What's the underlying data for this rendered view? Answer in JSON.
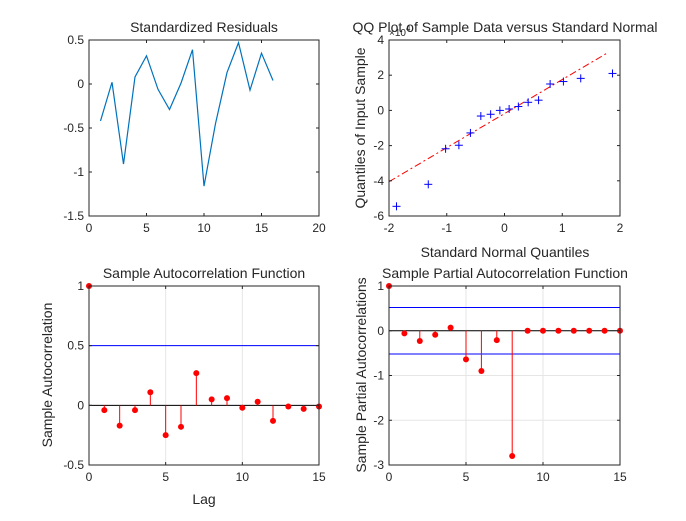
{
  "chart_data": [
    {
      "id": "residuals",
      "type": "line",
      "title": "Standardized Residuals",
      "xlabel": "",
      "ylabel": "",
      "xlim": [
        0,
        20
      ],
      "ylim": [
        -1.5,
        0.5
      ],
      "xticks": [
        0,
        5,
        10,
        15,
        20
      ],
      "yticks": [
        -1.5,
        -1,
        -0.5,
        0,
        0.5
      ],
      "xticklabels": [
        "0",
        "5",
        "10",
        "15",
        "20"
      ],
      "yticklabels": [
        "-1.5",
        "-1",
        "-0.5",
        "0",
        "0.5"
      ],
      "grid": false,
      "series": [
        {
          "color": "#0072bd",
          "x": [
            1,
            2,
            3,
            4,
            5,
            6,
            7,
            8,
            9,
            10,
            11,
            12,
            13,
            14,
            15,
            16
          ],
          "y": [
            -0.42,
            0.02,
            -0.91,
            0.08,
            0.32,
            -0.06,
            -0.29,
            0.01,
            0.39,
            -1.16,
            -0.45,
            0.13,
            0.47,
            -0.07,
            0.35,
            0.04
          ]
        }
      ]
    },
    {
      "id": "qqplot",
      "type": "scatter",
      "title": "QQ Plot of Sample Data versus Standard Normal",
      "xlabel": "Standard Normal Quantiles",
      "ylabel": "Quantiles of Input Sample",
      "exponent_label": "×10",
      "exponent_power": "4",
      "xlim": [
        -2,
        2
      ],
      "ylim": [
        -6,
        4
      ],
      "xticks": [
        -2,
        -1,
        0,
        1,
        2
      ],
      "yticks": [
        -6,
        -4,
        -2,
        0,
        2,
        4
      ],
      "xticklabels": [
        "-2",
        "-1",
        "0",
        "1",
        "2"
      ],
      "yticklabels": [
        "-6",
        "-4",
        "-2",
        "0",
        "2",
        "4"
      ],
      "grid": false,
      "marker": "+",
      "marker_color": "#0000ff",
      "points": {
        "x": [
          -1.87,
          -1.32,
          -1.02,
          -0.79,
          -0.59,
          -0.41,
          -0.24,
          -0.08,
          0.08,
          0.24,
          0.41,
          0.59,
          0.79,
          1.02,
          1.32,
          1.87
        ],
        "y": [
          -5.45,
          -4.2,
          -2.18,
          -1.98,
          -1.28,
          -0.32,
          -0.22,
          0.0,
          0.08,
          0.22,
          0.46,
          0.58,
          1.5,
          1.64,
          1.82,
          2.1
        ]
      },
      "reference_line": {
        "color": "#ff0000",
        "style": "dash-dot",
        "x": [
          -2,
          1.8
        ],
        "y": [
          -4.05,
          3.3
        ]
      }
    },
    {
      "id": "acf",
      "type": "stem",
      "title": "Sample Autocorrelation Function",
      "xlabel": "Lag",
      "ylabel": "Sample Autocorrelation",
      "xlim": [
        0,
        15
      ],
      "ylim": [
        -0.5,
        1
      ],
      "xticks": [
        0,
        5,
        10,
        15
      ],
      "yticks": [
        -0.5,
        0,
        0.5,
        1
      ],
      "xticklabels": [
        "0",
        "5",
        "10",
        "15"
      ],
      "yticklabels": [
        "-0.5",
        "0",
        "0.5",
        "1"
      ],
      "grid": true,
      "stem_color": "#ff0000",
      "lag": [
        0,
        1,
        2,
        3,
        4,
        5,
        6,
        7,
        8,
        9,
        10,
        11,
        12,
        13,
        14,
        15
      ],
      "values": [
        1.0,
        -0.04,
        -0.17,
        -0.04,
        0.11,
        -0.25,
        -0.18,
        0.27,
        0.05,
        0.06,
        -0.02,
        0.03,
        -0.13,
        -0.01,
        -0.03,
        -0.01
      ],
      "bounds": {
        "color": "#0000ff",
        "upper": 0.5,
        "lower": -0.5
      }
    },
    {
      "id": "pacf",
      "type": "stem",
      "title": "Sample Partial Autocorrelation Function",
      "xlabel": "",
      "ylabel": "Sample Partial Autocorrelations",
      "xlim": [
        0,
        15
      ],
      "ylim": [
        -3,
        1
      ],
      "xticks": [
        0,
        5,
        10,
        15
      ],
      "yticks": [
        -3,
        -2,
        -1,
        0,
        1
      ],
      "xticklabels": [
        "0",
        "5",
        "10",
        "15"
      ],
      "yticklabels": [
        "-3",
        "-2",
        "-1",
        "0",
        "1"
      ],
      "grid": true,
      "stem_color": "#ff0000",
      "lag": [
        0,
        1,
        2,
        3,
        4,
        5,
        6,
        7,
        8,
        9,
        10,
        11,
        12,
        13,
        14,
        15
      ],
      "values": [
        1.0,
        -0.06,
        -0.23,
        -0.09,
        0.07,
        -0.64,
        -0.9,
        -0.21,
        -2.8,
        0.0,
        0.0,
        0.0,
        0.0,
        0.0,
        0.0,
        0.0
      ],
      "bounds": {
        "color": "#0000ff",
        "upper": 0.52,
        "lower": -0.52
      }
    }
  ]
}
